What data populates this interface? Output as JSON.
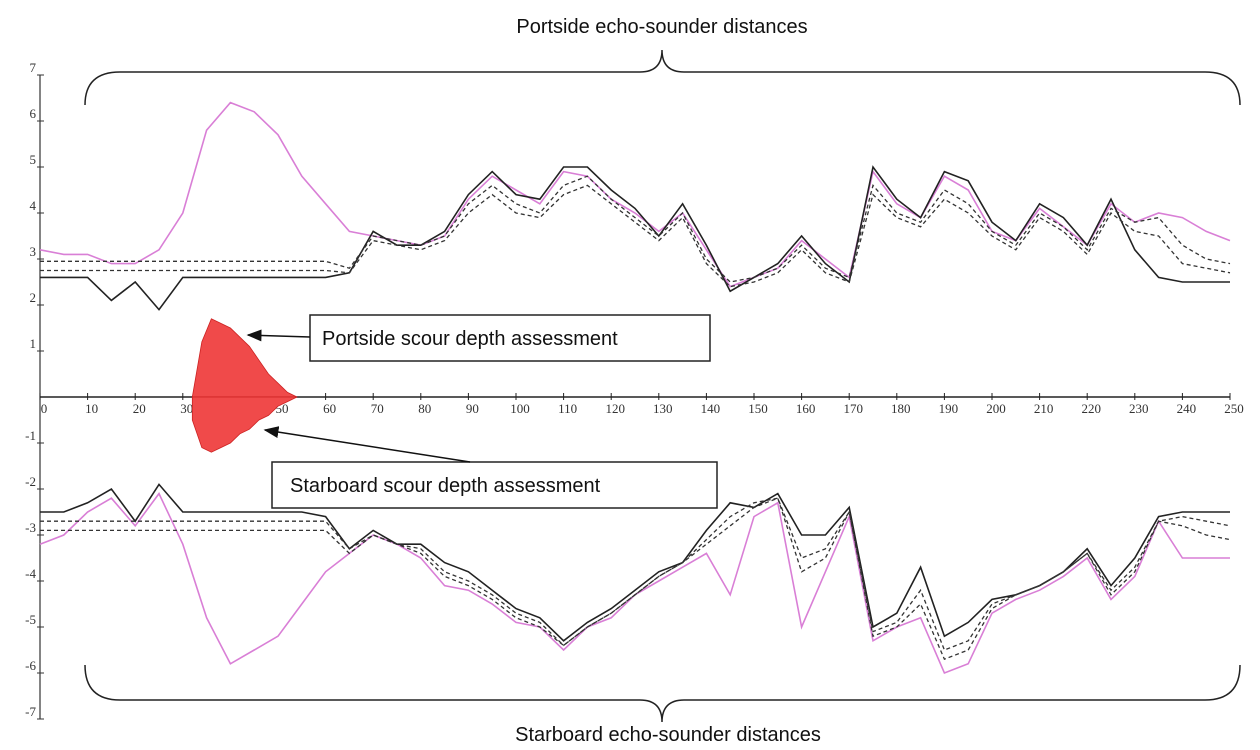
{
  "chart_data": {
    "type": "line",
    "title": "Portside echo-sounder distances",
    "subtitle": "Starboard echo-sounder distances",
    "annotations": [
      "Portside scour depth assessment",
      "Starboard scour depth assessment"
    ],
    "xlim": [
      0,
      250
    ],
    "xticks": [
      0,
      10,
      20,
      30,
      40,
      50,
      60,
      70,
      80,
      90,
      100,
      110,
      120,
      130,
      140,
      150,
      160,
      170,
      180,
      190,
      200,
      210,
      220,
      230,
      240,
      250
    ],
    "ylim": [
      -7,
      7
    ],
    "yticks": [
      -7,
      -6,
      -5,
      -4,
      -3,
      -2,
      -1,
      1,
      2,
      3,
      4,
      5,
      6,
      7
    ],
    "x": [
      0,
      5,
      10,
      15,
      20,
      25,
      30,
      35,
      40,
      45,
      50,
      55,
      60,
      65,
      70,
      75,
      80,
      85,
      90,
      95,
      100,
      105,
      110,
      115,
      120,
      125,
      130,
      135,
      140,
      145,
      150,
      155,
      160,
      165,
      170,
      175,
      180,
      185,
      190,
      195,
      200,
      205,
      210,
      215,
      220,
      225,
      230,
      235,
      240,
      245,
      250
    ],
    "series": [
      {
        "color": "#d97fd6",
        "dash": false,
        "values": [
          3.2,
          3.1,
          3.1,
          2.9,
          2.9,
          3.2,
          4.0,
          5.8,
          6.4,
          6.2,
          5.7,
          4.8,
          4.2,
          3.6,
          3.5,
          3.4,
          3.3,
          3.5,
          4.3,
          4.8,
          4.5,
          4.2,
          4.9,
          4.8,
          4.3,
          4.0,
          3.6,
          4.0,
          3.2,
          2.4,
          2.6,
          2.8,
          3.4,
          3.0,
          2.6,
          4.9,
          4.2,
          3.9,
          4.8,
          4.5,
          3.6,
          3.4,
          4.1,
          3.7,
          3.3,
          4.2,
          3.8,
          4.0,
          3.9,
          3.6,
          3.4
        ]
      },
      {
        "color": "#222222",
        "dash": false,
        "values": [
          2.6,
          2.6,
          2.6,
          2.1,
          2.5,
          1.9,
          2.6,
          2.6,
          2.6,
          2.6,
          2.6,
          2.6,
          2.6,
          2.7,
          3.6,
          3.3,
          3.3,
          3.6,
          4.4,
          4.9,
          4.4,
          4.3,
          5.0,
          5.0,
          4.5,
          4.1,
          3.5,
          4.2,
          3.3,
          2.3,
          2.6,
          2.9,
          3.5,
          2.9,
          2.5,
          5.0,
          4.3,
          3.9,
          4.9,
          4.7,
          3.8,
          3.4,
          4.2,
          3.9,
          3.3,
          4.3,
          3.2,
          2.6,
          2.5,
          2.5,
          2.5
        ]
      },
      {
        "color": "#333333",
        "dash": true,
        "values": [
          2.95,
          2.95,
          2.95,
          2.95,
          2.95,
          2.95,
          2.95,
          2.95,
          2.95,
          2.95,
          2.95,
          2.95,
          2.95,
          2.8,
          3.5,
          3.4,
          3.3,
          3.5,
          4.2,
          4.6,
          4.2,
          4.0,
          4.6,
          4.8,
          4.3,
          3.9,
          3.5,
          4.0,
          3.0,
          2.5,
          2.6,
          2.8,
          3.3,
          2.8,
          2.6,
          4.6,
          4.0,
          3.8,
          4.5,
          4.2,
          3.6,
          3.3,
          4.0,
          3.7,
          3.2,
          4.1,
          3.8,
          3.9,
          3.3,
          3.0,
          2.9
        ]
      },
      {
        "color": "#333333",
        "dash": true,
        "values": [
          2.75,
          2.75,
          2.75,
          2.75,
          2.75,
          2.75,
          2.75,
          2.75,
          2.75,
          2.75,
          2.75,
          2.75,
          2.75,
          2.7,
          3.4,
          3.3,
          3.2,
          3.4,
          4.0,
          4.4,
          4.0,
          3.9,
          4.4,
          4.6,
          4.2,
          3.8,
          3.4,
          3.9,
          2.9,
          2.4,
          2.5,
          2.7,
          3.2,
          2.7,
          2.5,
          4.4,
          3.9,
          3.7,
          4.3,
          4.0,
          3.5,
          3.2,
          3.9,
          3.6,
          3.1,
          4.0,
          3.6,
          3.5,
          2.9,
          2.8,
          2.7
        ]
      },
      {
        "color": "#d97fd6",
        "dash": false,
        "values": [
          -3.2,
          -3.0,
          -2.5,
          -2.2,
          -2.8,
          -2.1,
          -3.2,
          -4.8,
          -5.8,
          -5.5,
          -5.2,
          -4.5,
          -3.8,
          -3.4,
          -3.0,
          -3.2,
          -3.5,
          -4.1,
          -4.2,
          -4.5,
          -4.9,
          -5.0,
          -5.5,
          -5.0,
          -4.8,
          -4.3,
          -4.0,
          -3.7,
          -3.4,
          -4.3,
          -2.6,
          -2.3,
          -5.0,
          -3.8,
          -2.6,
          -5.3,
          -5.0,
          -4.8,
          -6.0,
          -5.8,
          -4.7,
          -4.4,
          -4.2,
          -3.9,
          -3.5,
          -4.4,
          -3.9,
          -2.7,
          -3.5,
          -3.5,
          -3.5
        ]
      },
      {
        "color": "#222222",
        "dash": false,
        "values": [
          -2.5,
          -2.5,
          -2.3,
          -2.0,
          -2.7,
          -1.9,
          -2.5,
          -2.5,
          -2.5,
          -2.5,
          -2.5,
          -2.5,
          -2.6,
          -3.3,
          -2.9,
          -3.2,
          -3.2,
          -3.6,
          -3.8,
          -4.2,
          -4.6,
          -4.8,
          -5.3,
          -4.9,
          -4.6,
          -4.2,
          -3.8,
          -3.6,
          -2.9,
          -2.3,
          -2.4,
          -2.1,
          -3.0,
          -3.0,
          -2.4,
          -5.0,
          -4.7,
          -3.7,
          -5.2,
          -4.9,
          -4.4,
          -4.3,
          -4.1,
          -3.8,
          -3.3,
          -4.1,
          -3.5,
          -2.6,
          -2.5,
          -2.5,
          -2.5
        ]
      },
      {
        "color": "#333333",
        "dash": true,
        "values": [
          -2.7,
          -2.7,
          -2.7,
          -2.7,
          -2.7,
          -2.7,
          -2.7,
          -2.7,
          -2.7,
          -2.7,
          -2.7,
          -2.7,
          -2.7,
          -3.3,
          -3.0,
          -3.2,
          -3.3,
          -3.8,
          -4.0,
          -4.3,
          -4.7,
          -4.9,
          -5.4,
          -5.0,
          -4.7,
          -4.3,
          -3.9,
          -3.6,
          -3.1,
          -2.6,
          -2.3,
          -2.2,
          -3.5,
          -3.3,
          -2.5,
          -5.1,
          -4.9,
          -4.2,
          -5.5,
          -5.3,
          -4.5,
          -4.3,
          -4.1,
          -3.8,
          -3.4,
          -4.2,
          -3.7,
          -2.7,
          -2.6,
          -2.7,
          -2.8
        ]
      },
      {
        "color": "#333333",
        "dash": true,
        "values": [
          -2.9,
          -2.9,
          -2.9,
          -2.9,
          -2.9,
          -2.9,
          -2.9,
          -2.9,
          -2.9,
          -2.9,
          -2.9,
          -2.9,
          -2.9,
          -3.4,
          -3.0,
          -3.2,
          -3.4,
          -3.9,
          -4.1,
          -4.4,
          -4.8,
          -5.0,
          -5.4,
          -5.0,
          -4.7,
          -4.3,
          -3.9,
          -3.6,
          -3.2,
          -2.8,
          -2.4,
          -2.2,
          -3.8,
          -3.5,
          -2.5,
          -5.2,
          -5.0,
          -4.5,
          -5.7,
          -5.5,
          -4.6,
          -4.3,
          -4.1,
          -3.8,
          -3.4,
          -4.3,
          -3.8,
          -2.7,
          -2.8,
          -3.0,
          -3.1
        ]
      }
    ],
    "scour": {
      "color": "#f04a4a",
      "x": [
        32,
        34,
        36,
        38,
        40,
        42,
        44,
        46,
        48,
        50,
        52,
        54
      ],
      "upper": [
        0,
        1.2,
        1.7,
        1.6,
        1.5,
        1.3,
        1.1,
        0.8,
        0.5,
        0.3,
        0.1,
        0
      ],
      "lower": [
        -0.5,
        -1.1,
        -1.2,
        -1.1,
        -1.0,
        -0.8,
        -0.7,
        -0.5,
        -0.4,
        -0.2,
        -0.1,
        0
      ]
    }
  }
}
